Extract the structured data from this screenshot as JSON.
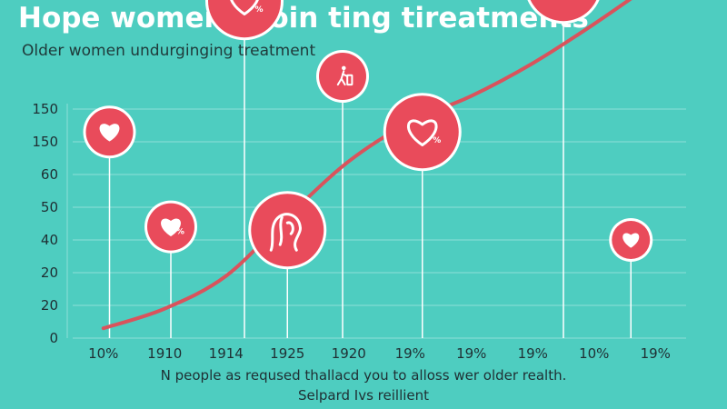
{
  "chart_data": {
    "type": "line",
    "title": "Hope women-utoin ting tireatments",
    "subtitle": "Older women undurginging treatment",
    "y_ticks": [
      "150",
      "150",
      "60",
      "50",
      "40",
      "20",
      "20",
      "0"
    ],
    "categories": [
      "10%",
      "1910",
      "1914",
      "1925",
      "1920",
      "19%",
      "19%",
      "19%",
      "10%",
      "19%"
    ],
    "grid": true,
    "curve": {
      "color": "#d9535c",
      "points": [
        {
          "x": 0,
          "y": 0.3
        },
        {
          "x": 1,
          "y": 0.9
        },
        {
          "x": 2,
          "y": 1.9
        },
        {
          "x": 3,
          "y": 3.7
        },
        {
          "x": 4,
          "y": 5.4
        },
        {
          "x": 5,
          "y": 6.6
        },
        {
          "x": 6,
          "y": 7.4
        },
        {
          "x": 7,
          "y": 8.4
        },
        {
          "x": 8,
          "y": 9.6
        },
        {
          "x": 9,
          "y": 10.9
        }
      ]
    },
    "markers": [
      {
        "x": 0.1,
        "y": 6.3,
        "icon": "heart-icon",
        "size": "medium",
        "badge": ""
      },
      {
        "x": 1.1,
        "y": 3.4,
        "icon": "heart-icon",
        "size": "medium",
        "badge": "%"
      },
      {
        "x": 2.3,
        "y": 10.3,
        "icon": "heart-icon",
        "size": "large",
        "badge": "%"
      },
      {
        "x": 3.0,
        "y": 3.3,
        "icon": "woman-profile-icon",
        "size": "large",
        "badge": ""
      },
      {
        "x": 3.9,
        "y": 8.0,
        "icon": "walker-icon",
        "size": "medium",
        "badge": ""
      },
      {
        "x": 5.2,
        "y": 6.3,
        "icon": "heart-icon",
        "size": "large",
        "badge": "%"
      },
      {
        "x": 7.5,
        "y": 10.8,
        "icon": "person-money-icon",
        "size": "large",
        "badge": "$"
      },
      {
        "x": 8.6,
        "y": 3.0,
        "icon": "heart-icon",
        "size": "small",
        "badge": ""
      }
    ],
    "colors": {
      "background": "#4ecdc0",
      "curve": "#d9535c",
      "marker_fill": "#e94b5b",
      "marker_ring": "#ffffff",
      "stem": "#ffffff",
      "grid": "#8fe0d8",
      "axis_text": "#1f2f33"
    }
  },
  "footer": {
    "line1": "N people as reqused thallacd you to alloss wer older realth.",
    "line2": "Selpard Ivs reillient"
  }
}
